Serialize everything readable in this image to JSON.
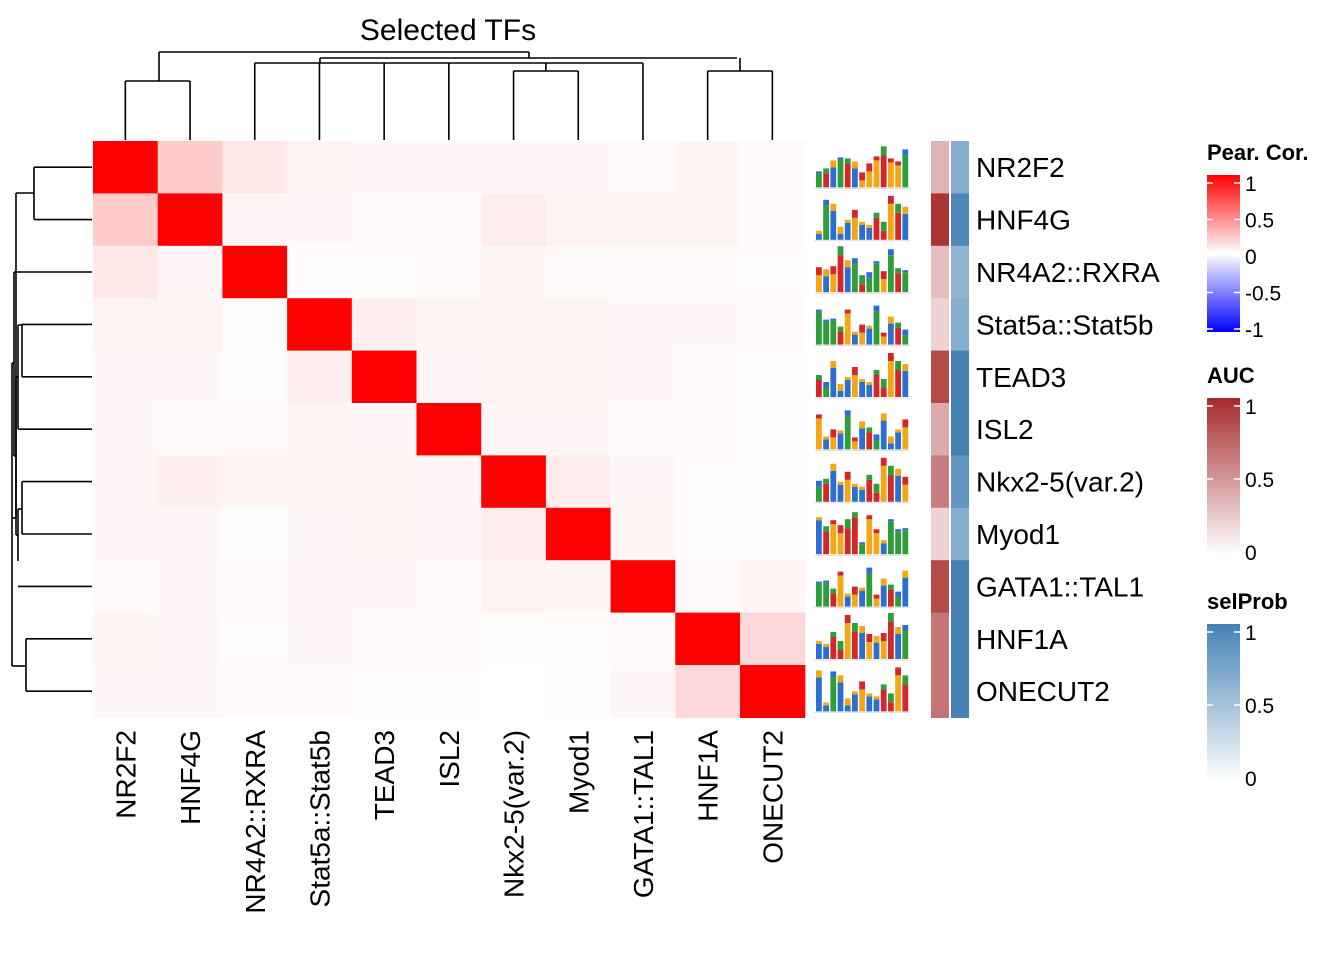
{
  "chart_data": {
    "type": "heatmap",
    "title": "Selected TFs",
    "rows": [
      "NR2F2",
      "HNF4G",
      "NR4A2::RXRA",
      "Stat5a::Stat5b",
      "TEAD3",
      "ISL2",
      "Nkx2-5(var.2)",
      "Myod1",
      "GATA1::TAL1",
      "HNF1A",
      "ONECUT2"
    ],
    "columns": [
      "NR2F2",
      "HNF4G",
      "NR4A2::RXRA",
      "Stat5a::Stat5b",
      "TEAD3",
      "ISL2",
      "Nkx2-5(var.2)",
      "Myod1",
      "GATA1::TAL1",
      "HNF1A",
      "ONECUT2"
    ],
    "values": [
      [
        1.0,
        0.2,
        0.09,
        0.05,
        0.03,
        0.03,
        0.03,
        0.03,
        0.02,
        0.04,
        0.02
      ],
      [
        0.2,
        1.0,
        0.03,
        0.03,
        0.02,
        0.02,
        0.07,
        0.05,
        0.04,
        0.04,
        0.02
      ],
      [
        0.09,
        0.03,
        1.0,
        0.01,
        0.01,
        0.02,
        0.04,
        0.02,
        0.02,
        0.02,
        0.01
      ],
      [
        0.05,
        0.04,
        0.01,
        1.0,
        0.06,
        0.04,
        0.04,
        0.04,
        0.03,
        0.03,
        0.02
      ],
      [
        0.03,
        0.03,
        0.01,
        0.06,
        1.0,
        0.03,
        0.04,
        0.04,
        0.03,
        0.02,
        0.01
      ],
      [
        0.03,
        0.02,
        0.02,
        0.04,
        0.03,
        1.0,
        0.03,
        0.03,
        0.02,
        0.02,
        0.01
      ],
      [
        0.03,
        0.06,
        0.04,
        0.04,
        0.04,
        0.03,
        1.0,
        0.07,
        0.03,
        0.01,
        0.01
      ],
      [
        0.03,
        0.03,
        0.01,
        0.03,
        0.04,
        0.03,
        0.07,
        1.0,
        0.04,
        0.01,
        0.01
      ],
      [
        0.02,
        0.03,
        0.02,
        0.03,
        0.03,
        0.02,
        0.05,
        0.04,
        1.0,
        0.02,
        0.04
      ],
      [
        0.04,
        0.03,
        0.01,
        0.03,
        0.02,
        0.02,
        0.01,
        0.01,
        0.02,
        1.0,
        0.15
      ],
      [
        0.03,
        0.03,
        0.02,
        0.02,
        0.01,
        0.01,
        0.0,
        0.01,
        0.03,
        0.15,
        1.0
      ]
    ],
    "auc": [
      0.35,
      0.95,
      0.3,
      0.2,
      0.85,
      0.4,
      0.6,
      0.2,
      0.85,
      0.65,
      0.65
    ],
    "selProb": [
      0.65,
      0.95,
      0.6,
      0.65,
      1.0,
      1.0,
      0.85,
      0.65,
      1.0,
      1.0,
      1.0
    ],
    "logos_shown": true,
    "legends": [
      {
        "title": "Pear. Cor.",
        "ticks": [
          "1",
          "0.5",
          "0",
          "-0.5",
          "-1"
        ],
        "tick_values": [
          1,
          0.5,
          0,
          -0.5,
          -1
        ],
        "low_color": "#0000ff",
        "mid_color": "#ffffff",
        "high_color": "#ff0000"
      },
      {
        "title": "AUC",
        "ticks": [
          "1",
          "0.5",
          "0"
        ],
        "tick_values": [
          1,
          0.5,
          0
        ],
        "low_color": "#ffffff",
        "high_color": "#a52a2a"
      },
      {
        "title": "selProb",
        "ticks": [
          "1",
          "0.5",
          "0"
        ],
        "tick_values": [
          1,
          0.5,
          0
        ],
        "low_color": "#ffffff",
        "high_color": "#4682b4"
      }
    ]
  }
}
